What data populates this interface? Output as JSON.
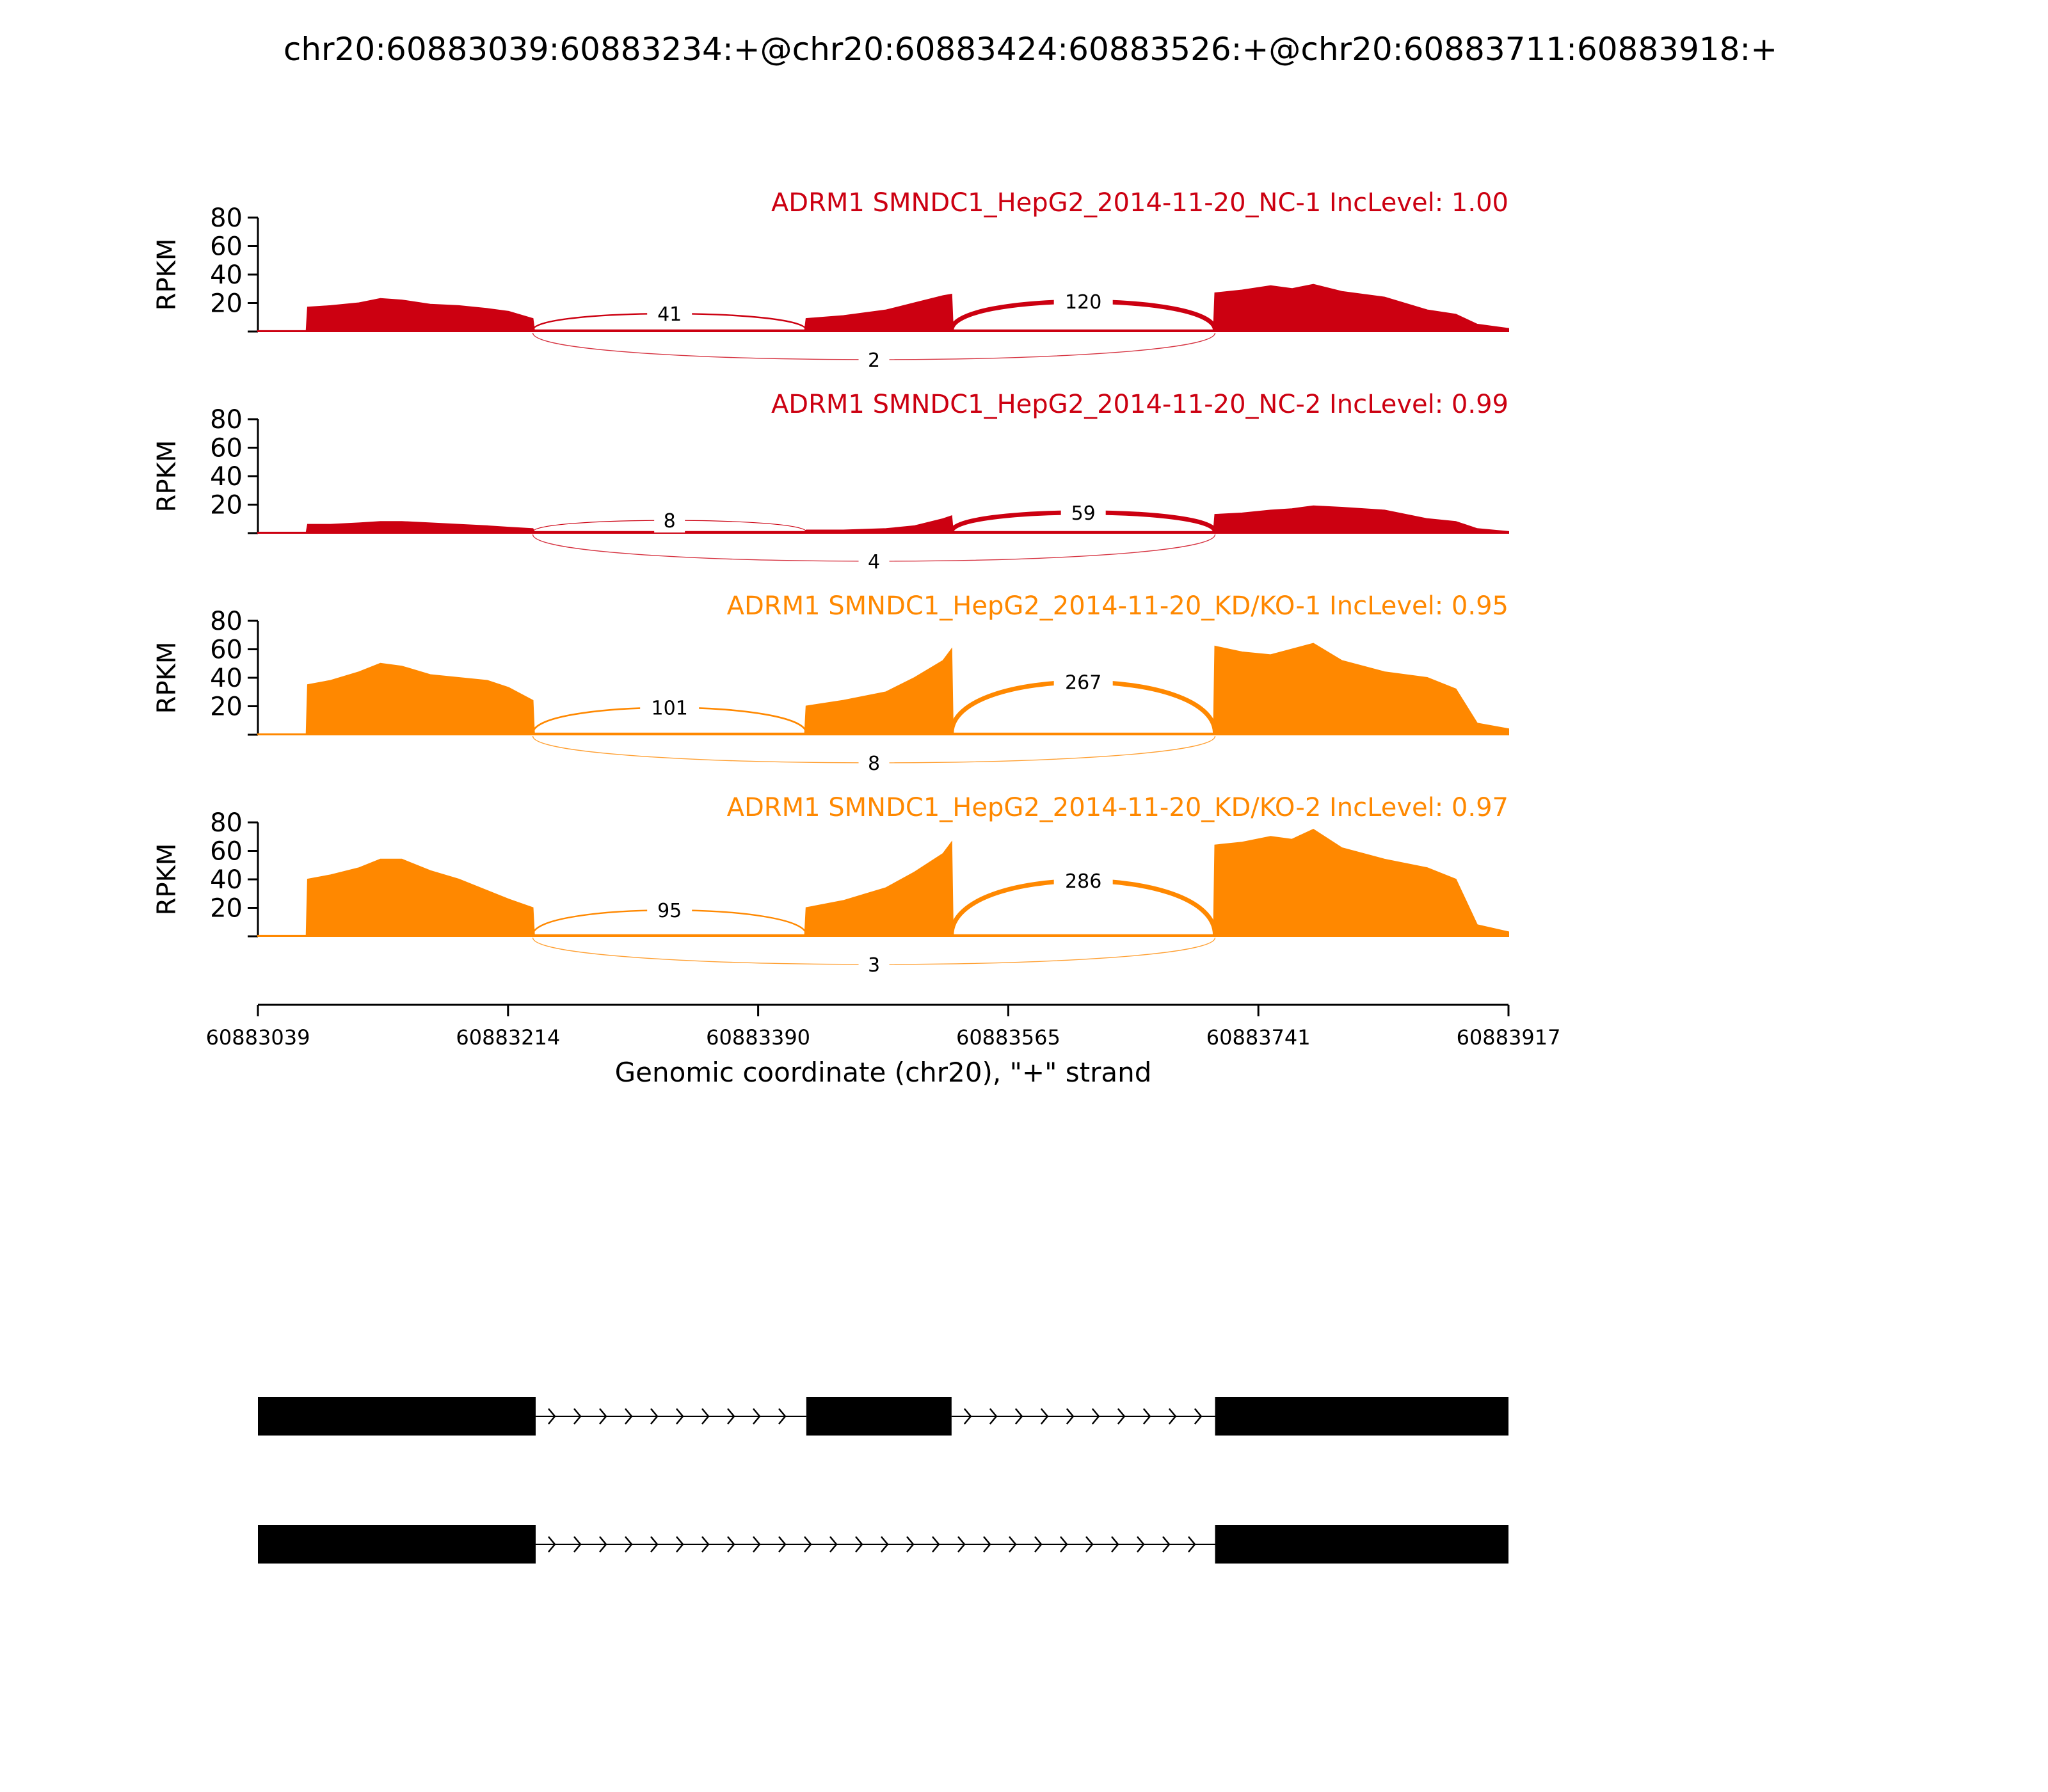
{
  "chart_data": {
    "type": "area",
    "title": "chr20:60883039:60883234:+@chr20:60883424:60883526:+@chr20:60883711:60883918:+",
    "xlabel": "Genomic coordinate (chr20), \"+\" strand",
    "ylabel": "RPKM",
    "x_range": [
      60883039,
      60883917
    ],
    "x_ticks": [
      "60883039",
      "60883214",
      "60883390",
      "60883565",
      "60883741",
      "60883917"
    ],
    "y_range": [
      0,
      80
    ],
    "y_ticks": [
      "20",
      "40",
      "60",
      "80"
    ],
    "exons": [
      {
        "start": 60883074,
        "end": 60883232
      },
      {
        "start": 60883424,
        "end": 60883526
      },
      {
        "start": 60883711,
        "end": 60883917
      }
    ],
    "tracks": [
      {
        "label": "ADRM1 SMNDC1_HepG2_2014-11-20_NC-1 IncLevel: 1.00",
        "color": "#cc0011",
        "coverage": {
          "x": [
            60883039,
            60883073,
            60883074,
            60883090,
            60883110,
            60883125,
            60883140,
            60883160,
            60883180,
            60883200,
            60883215,
            60883232,
            60883233,
            60883423,
            60883424,
            60883450,
            60883480,
            60883500,
            60883520,
            60883526,
            60883527,
            60883710,
            60883711,
            60883730,
            60883750,
            60883765,
            60883780,
            60883800,
            60883830,
            60883860,
            60883880,
            60883895,
            60883917
          ],
          "y": [
            0.5,
            0.5,
            17,
            18,
            20,
            23,
            22,
            19,
            18,
            16,
            14,
            9,
            1,
            1,
            9,
            11,
            15,
            20,
            25,
            26,
            1,
            1,
            27,
            29,
            32,
            30,
            33,
            28,
            24,
            15,
            12,
            5,
            2
          ]
        },
        "junctions": [
          {
            "from": 60883232,
            "to": 60883424,
            "reads": 41
          },
          {
            "from": 60883526,
            "to": 60883711,
            "reads": 120
          },
          {
            "from": 60883232,
            "to": 60883711,
            "reads": 2
          }
        ]
      },
      {
        "label": "ADRM1 SMNDC1_HepG2_2014-11-20_NC-2 IncLevel: 0.99",
        "color": "#cc0011",
        "coverage": {
          "x": [
            60883039,
            60883073,
            60883074,
            60883090,
            60883110,
            60883125,
            60883140,
            60883160,
            60883180,
            60883200,
            60883215,
            60883232,
            60883233,
            60883423,
            60883424,
            60883450,
            60883480,
            60883500,
            60883520,
            60883526,
            60883527,
            60883710,
            60883711,
            60883730,
            60883750,
            60883765,
            60883780,
            60883800,
            60883830,
            60883860,
            60883880,
            60883895,
            60883917
          ],
          "y": [
            0.5,
            0.5,
            6,
            6,
            7,
            8,
            8,
            7,
            6,
            5,
            4,
            3,
            1,
            1,
            2,
            2,
            3,
            5,
            10,
            12,
            1,
            1,
            13,
            14,
            16,
            17,
            19,
            18,
            16,
            10,
            8,
            3,
            1
          ]
        },
        "junctions": [
          {
            "from": 60883232,
            "to": 60883424,
            "reads": 8
          },
          {
            "from": 60883526,
            "to": 60883711,
            "reads": 59
          },
          {
            "from": 60883232,
            "to": 60883711,
            "reads": 4
          }
        ]
      },
      {
        "label": "ADRM1 SMNDC1_HepG2_2014-11-20_KD/KO-1 IncLevel: 0.95",
        "color": "#ff8800",
        "coverage": {
          "x": [
            60883039,
            60883073,
            60883074,
            60883090,
            60883110,
            60883125,
            60883140,
            60883160,
            60883180,
            60883200,
            60883215,
            60883232,
            60883233,
            60883423,
            60883424,
            60883450,
            60883480,
            60883500,
            60883520,
            60883526,
            60883527,
            60883710,
            60883711,
            60883730,
            60883750,
            60883765,
            60883780,
            60883800,
            60883830,
            60883860,
            60883880,
            60883895,
            60883917
          ],
          "y": [
            0.5,
            0.5,
            35,
            38,
            44,
            50,
            48,
            42,
            40,
            38,
            33,
            24,
            1,
            1,
            20,
            24,
            30,
            40,
            52,
            60,
            1,
            1,
            62,
            58,
            56,
            60,
            64,
            52,
            44,
            40,
            32,
            8,
            4
          ]
        },
        "junctions": [
          {
            "from": 60883232,
            "to": 60883424,
            "reads": 101
          },
          {
            "from": 60883526,
            "to": 60883711,
            "reads": 267
          },
          {
            "from": 60883232,
            "to": 60883711,
            "reads": 8
          }
        ]
      },
      {
        "label": "ADRM1 SMNDC1_HepG2_2014-11-20_KD/KO-2 IncLevel: 0.97",
        "color": "#ff8800",
        "coverage": {
          "x": [
            60883039,
            60883073,
            60883074,
            60883090,
            60883110,
            60883125,
            60883140,
            60883160,
            60883180,
            60883200,
            60883215,
            60883232,
            60883233,
            60883423,
            60883424,
            60883450,
            60883480,
            60883500,
            60883520,
            60883526,
            60883527,
            60883710,
            60883711,
            60883730,
            60883750,
            60883765,
            60883780,
            60883800,
            60883830,
            60883860,
            60883880,
            60883895,
            60883917
          ],
          "y": [
            0.5,
            0.5,
            40,
            43,
            48,
            54,
            54,
            46,
            40,
            32,
            26,
            20,
            1,
            1,
            20,
            25,
            34,
            45,
            58,
            66,
            1,
            1,
            64,
            66,
            70,
            68,
            75,
            62,
            54,
            48,
            40,
            8,
            3
          ]
        },
        "junctions": [
          {
            "from": 60883232,
            "to": 60883424,
            "reads": 95
          },
          {
            "from": 60883526,
            "to": 60883711,
            "reads": 286
          },
          {
            "from": 60883232,
            "to": 60883711,
            "reads": 3
          }
        ]
      }
    ],
    "isoforms": [
      {
        "exons": [
          [
            60883039,
            60883234
          ],
          [
            60883424,
            60883526
          ],
          [
            60883711,
            60883917
          ]
        ]
      },
      {
        "exons": [
          [
            60883039,
            60883234
          ],
          [
            60883711,
            60883917
          ]
        ]
      }
    ]
  }
}
